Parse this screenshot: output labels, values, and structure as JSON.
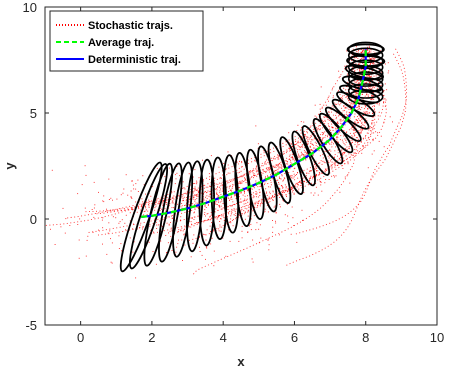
{
  "chart_data": {
    "type": "line",
    "xlabel": "x",
    "ylabel": "y",
    "xlim": [
      -1,
      10
    ],
    "ylim": [
      -5,
      10
    ],
    "xticks": [
      0,
      2,
      4,
      6,
      8,
      10
    ],
    "yticks": [
      -5,
      0,
      5,
      10
    ],
    "grid": false,
    "legend_position": "top-left",
    "legend": [
      {
        "label": "Stochastic trajs.",
        "color": "#ff0000",
        "style": "dotted"
      },
      {
        "label": "Average traj.",
        "color": "#00ff00",
        "style": "dashed"
      },
      {
        "label": "Deterministic traj.",
        "color": "#0000ff",
        "style": "solid"
      }
    ],
    "series": [
      {
        "name": "Deterministic traj.",
        "color": "#0000ff",
        "x": [
          1.7,
          2.0,
          2.5,
          3.0,
          3.5,
          4.0,
          4.5,
          5.0,
          5.5,
          6.0,
          6.5,
          7.0,
          7.3,
          7.6,
          7.8,
          7.9,
          8.0,
          8.0
        ],
        "y": [
          0.1,
          0.15,
          0.3,
          0.5,
          0.75,
          1.05,
          1.35,
          1.7,
          2.1,
          2.6,
          3.1,
          3.75,
          4.3,
          5.0,
          5.7,
          6.4,
          7.2,
          8.0
        ]
      },
      {
        "name": "Average traj.",
        "color": "#00ff00",
        "x": [
          1.7,
          2.0,
          2.5,
          3.0,
          3.5,
          4.0,
          4.5,
          5.0,
          5.5,
          6.0,
          6.5,
          7.0,
          7.3,
          7.6,
          7.8,
          7.9,
          8.0,
          8.0
        ],
        "y": [
          0.1,
          0.15,
          0.3,
          0.5,
          0.75,
          1.05,
          1.35,
          1.7,
          2.1,
          2.6,
          3.1,
          3.75,
          4.3,
          5.0,
          5.7,
          6.4,
          7.2,
          8.0
        ]
      }
    ]
  }
}
